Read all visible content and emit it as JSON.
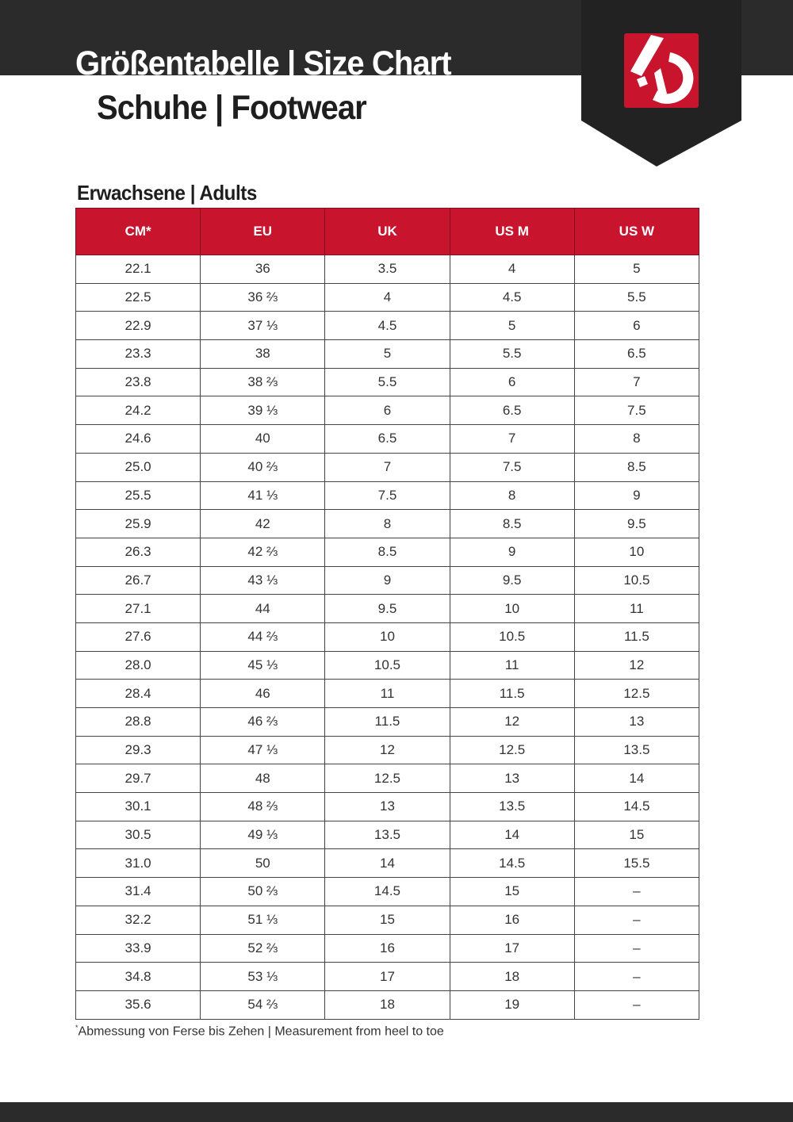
{
  "header": {
    "title": "Größentabelle | Size Chart",
    "subtitle": "Schuhe | Footwear",
    "logo_icon": "five-ten-logo-icon"
  },
  "colors": {
    "brand_red": "#c8152d",
    "dark": "#2b2b2b"
  },
  "section": {
    "title": "Erwachsene | Adults"
  },
  "table": {
    "columns": [
      "CM*",
      "EU",
      "UK",
      "US M",
      "US W"
    ],
    "rows": [
      [
        "22.1",
        "36",
        "3.5",
        "4",
        "5"
      ],
      [
        "22.5",
        "36 ⅔",
        "4",
        "4.5",
        "5.5"
      ],
      [
        "22.9",
        "37 ⅓",
        "4.5",
        "5",
        "6"
      ],
      [
        "23.3",
        "38",
        "5",
        "5.5",
        "6.5"
      ],
      [
        "23.8",
        "38 ⅔",
        "5.5",
        "6",
        "7"
      ],
      [
        "24.2",
        "39 ⅓",
        "6",
        "6.5",
        "7.5"
      ],
      [
        "24.6",
        "40",
        "6.5",
        "7",
        "8"
      ],
      [
        "25.0",
        "40 ⅔",
        "7",
        "7.5",
        "8.5"
      ],
      [
        "25.5",
        "41 ⅓",
        "7.5",
        "8",
        "9"
      ],
      [
        "25.9",
        "42",
        "8",
        "8.5",
        "9.5"
      ],
      [
        "26.3",
        "42 ⅔",
        "8.5",
        "9",
        "10"
      ],
      [
        "26.7",
        "43 ⅓",
        "9",
        "9.5",
        "10.5"
      ],
      [
        "27.1",
        "44",
        "9.5",
        "10",
        "11"
      ],
      [
        "27.6",
        "44 ⅔",
        "10",
        "10.5",
        "11.5"
      ],
      [
        "28.0",
        "45 ⅓",
        "10.5",
        "11",
        "12"
      ],
      [
        "28.4",
        "46",
        "11",
        "11.5",
        "12.5"
      ],
      [
        "28.8",
        "46 ⅔",
        "11.5",
        "12",
        "13"
      ],
      [
        "29.3",
        "47 ⅓",
        "12",
        "12.5",
        "13.5"
      ],
      [
        "29.7",
        "48",
        "12.5",
        "13",
        "14"
      ],
      [
        "30.1",
        "48 ⅔",
        "13",
        "13.5",
        "14.5"
      ],
      [
        "30.5",
        "49 ⅓",
        "13.5",
        "14",
        "15"
      ],
      [
        "31.0",
        "50",
        "14",
        "14.5",
        "15.5"
      ],
      [
        "31.4",
        "50 ⅔",
        "14.5",
        "15",
        "–"
      ],
      [
        "32.2",
        "51 ⅓",
        "15",
        "16",
        "–"
      ],
      [
        "33.9",
        "52 ⅔",
        "16",
        "17",
        "–"
      ],
      [
        "34.8",
        "53 ⅓",
        "17",
        "18",
        "–"
      ],
      [
        "35.6",
        "54 ⅔",
        "18",
        "19",
        "–"
      ]
    ]
  },
  "footnote": {
    "marker": "*",
    "text": "Abmessung von Ferse bis Zehen | Measurement from heel to toe"
  }
}
